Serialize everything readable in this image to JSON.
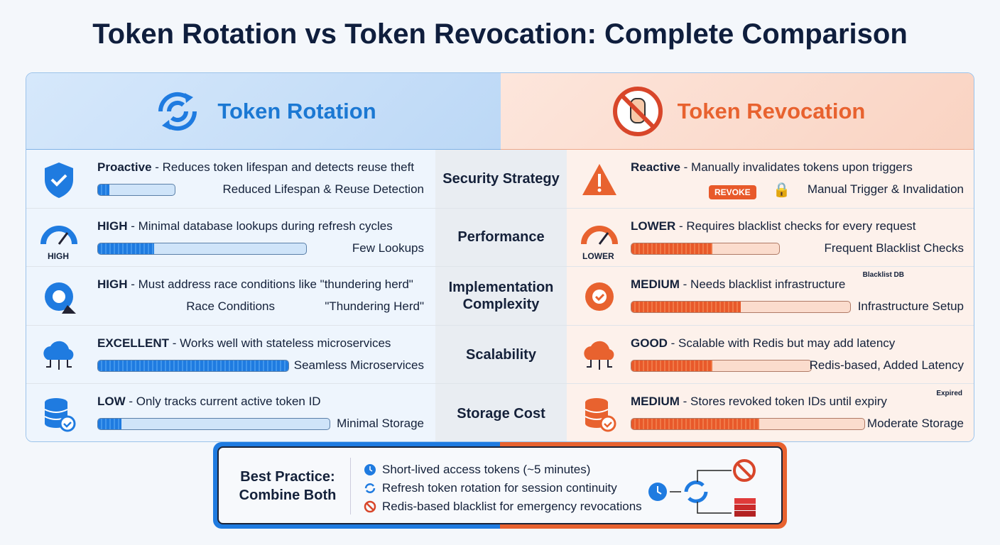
{
  "title": "Token Rotation vs Token Revocation: Complete Comparison",
  "left_header": "Token Rotation",
  "right_header": "Token Revocation",
  "colors": {
    "rotation": "#1f7be0",
    "revocation": "#e8622f"
  },
  "rows": [
    {
      "criterion": "Security Strategy",
      "left": {
        "level": "Proactive",
        "text": " - Reduces token lifespan and detects reuse theft",
        "note": "Reduced Lifespan & Reuse Detection",
        "fill": 0.15,
        "icon": "shield-check-icon"
      },
      "right": {
        "level": "Reactive",
        "text": " - Manually invalidates tokens upon triggers",
        "note": "Manual Trigger & Invalidation",
        "button": "REVOKE",
        "icon": "warning-icon"
      }
    },
    {
      "criterion": "Performance",
      "left": {
        "level": "HIGH",
        "text": " - Minimal database lookups during refresh cycles",
        "note": "Few Lookups",
        "fill": 0.27,
        "gauge": "HIGH",
        "icon": "gauge-icon"
      },
      "right": {
        "level": "LOWER",
        "text": " - Requires blacklist checks for every request",
        "note": "Frequent Blacklist Checks",
        "fill": 0.55,
        "gauge": "LOWER",
        "icon": "gauge-icon"
      }
    },
    {
      "criterion": "Implementation Complexity",
      "left": {
        "level": "HIGH",
        "text": " - Must address race conditions like \"thundering herd\"",
        "note": "Race Conditions",
        "note2": "\"Thundering Herd\"",
        "icon": "gear-wrench-icon"
      },
      "right": {
        "level": "MEDIUM",
        "text": " - Needs blacklist infrastructure",
        "note": "Infrastructure Setup",
        "label": "Blacklist DB",
        "fill": 0.5,
        "icon": "gear-check-icon"
      }
    },
    {
      "criterion": "Scalability",
      "left": {
        "level": "EXCELLENT",
        "text": " - Works well with stateless microservices",
        "note": "Seamless Microservices",
        "fill": 1.0,
        "icon": "cloud-network-icon"
      },
      "right": {
        "level": "GOOD",
        "text": " - Scalable with Redis but may add latency",
        "note": "Redis-based, Added Latency",
        "fill": 0.45,
        "icon": "cloud-network-icon"
      }
    },
    {
      "criterion": "Storage Cost",
      "left": {
        "level": "LOW",
        "text": " - Only tracks current active token ID",
        "note": "Minimal Storage",
        "fill": 0.1,
        "icon": "database-check-icon"
      },
      "right": {
        "level": "MEDIUM",
        "text": " - Stores revoked token IDs until expiry",
        "note": "Moderate Storage",
        "label": "Expired",
        "fill": 0.55,
        "icon": "database-check-icon"
      }
    }
  ],
  "best_practice": {
    "title": "Best Practice: Combine Both",
    "items": [
      "Short-lived access tokens (~5 minutes)",
      "Refresh token rotation for session continuity",
      "Redis-based blacklist for emergency revocations"
    ]
  }
}
